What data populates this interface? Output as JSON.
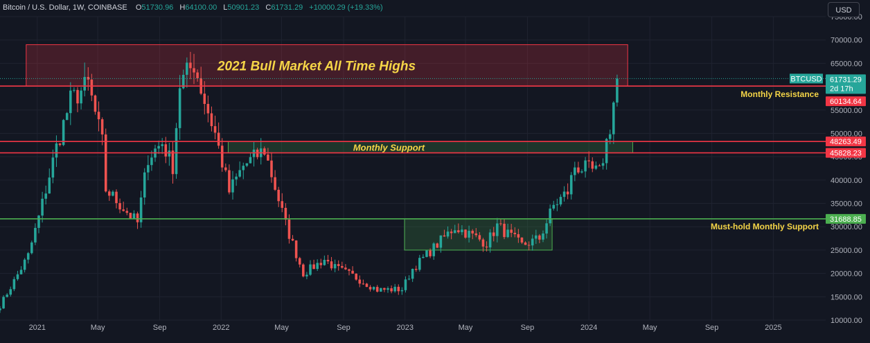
{
  "header": {
    "symbol": "Bitcoin / U.S. Dollar, 1W, COINBASE",
    "open_label": "O",
    "open": "51730.96",
    "high_label": "H",
    "high": "64100.00",
    "low_label": "L",
    "low": "50901.23",
    "close_label": "C",
    "close": "61731.29",
    "change": "+10000.29 (+19.33%)"
  },
  "currency": "USD",
  "colors": {
    "background": "#131722",
    "up": "#26a69a",
    "down": "#ef5350",
    "resistance_line": "#f23645",
    "support_line": "#4caf50",
    "annotation": "#f5d547"
  },
  "chart_data": {
    "type": "candlestick",
    "symbol": "BTCUSD",
    "interval": "1W",
    "ylim": [
      10000,
      75000
    ],
    "y_ticks": [
      "10000.00",
      "15000.00",
      "20000.00",
      "25000.00",
      "30000.00",
      "35000.00",
      "40000.00",
      "45000.00",
      "50000.00",
      "55000.00",
      "60000.00",
      "65000.00",
      "70000.00",
      "75000.00"
    ],
    "x_ticks": [
      "2021",
      "May",
      "Sep",
      "2022",
      "May",
      "Sep",
      "2023",
      "May",
      "Sep",
      "2024",
      "May",
      "Sep",
      "2025"
    ],
    "x_tick_dates": [
      "2021-01-01",
      "2021-05-01",
      "2021-09-01",
      "2022-01-01",
      "2022-05-01",
      "2022-09-01",
      "2023-01-01",
      "2023-05-01",
      "2023-09-01",
      "2024-01-01",
      "2024-05-01",
      "2024-09-01",
      "2025-01-01"
    ],
    "x_range": [
      "2020-10-19",
      "2025-04-15"
    ],
    "weekly_closes": [
      [
        "2020-10-19",
        13100
      ],
      [
        "2020-11-16",
        18400
      ],
      [
        "2020-12-14",
        23800
      ],
      [
        "2021-01-04",
        32000
      ],
      [
        "2021-02-08",
        47000
      ],
      [
        "2021-03-08",
        57000
      ],
      [
        "2021-04-12",
        60500
      ],
      [
        "2021-05-10",
        48000
      ],
      [
        "2021-05-17",
        38000
      ],
      [
        "2021-06-21",
        34000
      ],
      [
        "2021-07-19",
        30800
      ],
      [
        "2021-08-09",
        45000
      ],
      [
        "2021-09-06",
        48000
      ],
      [
        "2021-09-27",
        43000
      ],
      [
        "2021-10-11",
        60500
      ],
      [
        "2021-11-08",
        65000
      ],
      [
        "2021-11-29",
        57000
      ],
      [
        "2021-12-20",
        50000
      ],
      [
        "2022-01-17",
        37500
      ],
      [
        "2022-02-14",
        43000
      ],
      [
        "2022-03-28",
        46500
      ],
      [
        "2022-05-09",
        30500
      ],
      [
        "2022-06-13",
        20000
      ],
      [
        "2022-07-25",
        23000
      ],
      [
        "2022-08-15",
        21200
      ],
      [
        "2022-09-19",
        19500
      ],
      [
        "2022-11-07",
        16500
      ],
      [
        "2022-12-26",
        16600
      ],
      [
        "2023-01-16",
        21000
      ],
      [
        "2023-03-13",
        27000
      ],
      [
        "2023-04-10",
        30000
      ],
      [
        "2023-06-12",
        26500
      ],
      [
        "2023-07-03",
        30200
      ],
      [
        "2023-08-21",
        26000
      ],
      [
        "2023-09-25",
        27500
      ],
      [
        "2023-10-23",
        34500
      ],
      [
        "2023-11-20",
        37500
      ],
      [
        "2023-12-04",
        43000
      ],
      [
        "2024-01-22",
        41500
      ],
      [
        "2024-02-12",
        51500
      ],
      [
        "2024-02-26",
        61731.29
      ]
    ],
    "last_price": 61731.29,
    "countdown": "2d 17h",
    "levels": [
      {
        "price": 60134.64,
        "label": "Monthly Resistance",
        "color": "#f23645"
      },
      {
        "price": 48263.49,
        "color": "#f23645"
      },
      {
        "price": 45828.23,
        "color": "#f23645"
      },
      {
        "price": 31688.85,
        "label": "Must-hold Monthly Support",
        "color": "#4caf50"
      }
    ],
    "zones": [
      {
        "label": "2021 Bull Market All Time Highs",
        "from_date": "2020-12-10",
        "to_date": "2024-03-18",
        "y_low": 60134.64,
        "y_high": 69000,
        "color": "#f23645"
      },
      {
        "label": "Monthly Support",
        "from_date": "2022-01-15",
        "to_date": "2024-03-28",
        "y_low": 45828.23,
        "y_high": 48263.49,
        "color": "#4caf50"
      },
      {
        "label": "",
        "from_date": "2022-12-31",
        "to_date": "2023-10-20",
        "y_low": 25000,
        "y_high": 31688.85,
        "color": "#4caf50"
      }
    ]
  }
}
